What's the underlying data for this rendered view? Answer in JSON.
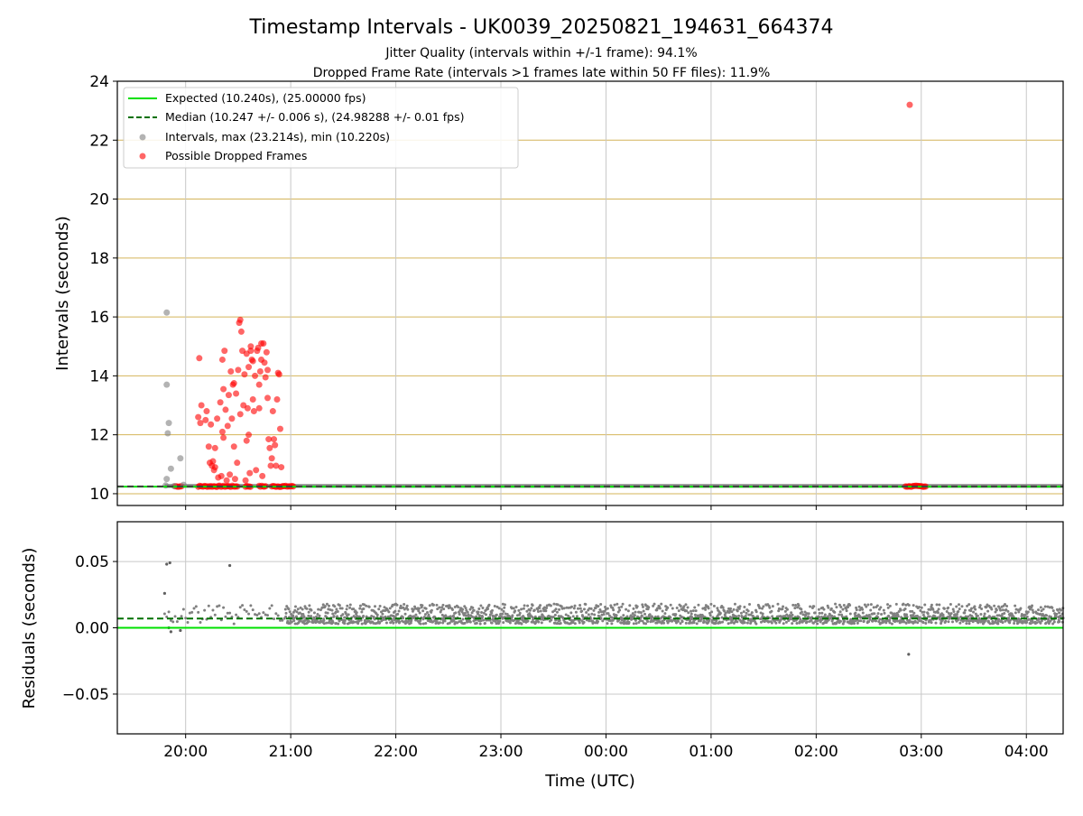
{
  "header": {
    "title": "Timestamp Intervals - UK0039_20250821_194631_664374",
    "subtitle1": "Jitter Quality (intervals within +/-1 frame): 94.1%",
    "subtitle2": "Dropped Frame Rate (intervals >1 frames late within 50 FF files): 11.9%"
  },
  "colors": {
    "expected": "#00e000",
    "median": "#007000",
    "intervals": "#808080",
    "dropped": "#ff0000",
    "hgrid_top": "#d4b45a",
    "vgrid": "#c8c8c8"
  },
  "chart_data": [
    {
      "type": "scatter",
      "ylabel": "Intervals (seconds)",
      "ylim": [
        9.6,
        24
      ],
      "yticks": [
        10,
        12,
        14,
        16,
        18,
        20,
        22,
        24
      ],
      "xlim_hours": [
        19.35,
        28.35
      ],
      "xticks_hours": [
        20,
        21,
        22,
        23,
        24,
        25,
        26,
        27,
        28
      ],
      "expected": 10.24,
      "median": 10.247,
      "legend": {
        "location": "upper-left",
        "entries": [
          "Expected (10.240s), (25.00000 fps)",
          "Median (10.247 +/- 0.006 s), (24.98288 +/- 0.01 fps)",
          "Intervals, max (23.214s), min (10.220s)",
          "Possible Dropped Frames"
        ]
      },
      "series": [
        {
          "name": "Intervals, max (23.214s), min (10.220s)",
          "points": [
            [
              19.82,
              16.15
            ],
            [
              19.82,
              13.7
            ],
            [
              19.84,
              12.4
            ],
            [
              19.83,
              12.05
            ],
            [
              19.82,
              10.5
            ],
            [
              19.86,
              10.85
            ],
            [
              19.81,
              10.28
            ],
            [
              19.95,
              11.2
            ],
            [
              19.89,
              10.26
            ],
            [
              19.98,
              10.3
            ]
          ]
        },
        {
          "name": "Possible Dropped Frames",
          "points": [
            [
              20.13,
              14.6
            ],
            [
              20.15,
              13.0
            ],
            [
              20.12,
              12.6
            ],
            [
              20.14,
              12.4
            ],
            [
              20.2,
              12.8
            ],
            [
              20.22,
              11.6
            ],
            [
              20.26,
              11.1
            ],
            [
              20.25,
              10.95
            ],
            [
              20.28,
              11.55
            ],
            [
              20.3,
              12.55
            ],
            [
              20.33,
              13.1
            ],
            [
              20.35,
              14.55
            ],
            [
              20.37,
              14.85
            ],
            [
              20.38,
              12.85
            ],
            [
              20.35,
              12.1
            ],
            [
              20.36,
              11.9
            ],
            [
              20.4,
              12.3
            ],
            [
              20.41,
              13.35
            ],
            [
              20.43,
              14.15
            ],
            [
              20.45,
              13.7
            ],
            [
              20.44,
              12.55
            ],
            [
              20.46,
              11.6
            ],
            [
              20.48,
              13.4
            ],
            [
              20.5,
              14.2
            ],
            [
              20.51,
              15.8
            ],
            [
              20.52,
              15.9
            ],
            [
              20.53,
              15.5
            ],
            [
              20.54,
              14.85
            ],
            [
              20.52,
              12.7
            ],
            [
              20.49,
              11.05
            ],
            [
              20.55,
              13.0
            ],
            [
              20.56,
              14.05
            ],
            [
              20.58,
              11.8
            ],
            [
              20.59,
              12.9
            ],
            [
              20.6,
              14.3
            ],
            [
              20.62,
              14.85
            ],
            [
              20.63,
              14.55
            ],
            [
              20.64,
              13.2
            ],
            [
              20.65,
              12.8
            ],
            [
              20.66,
              14.0
            ],
            [
              20.68,
              14.85
            ],
            [
              20.69,
              14.95
            ],
            [
              20.7,
              13.7
            ],
            [
              20.71,
              14.15
            ],
            [
              20.72,
              15.1
            ],
            [
              20.74,
              15.1
            ],
            [
              20.75,
              14.45
            ],
            [
              20.76,
              13.95
            ],
            [
              20.77,
              14.8
            ],
            [
              20.78,
              13.25
            ],
            [
              20.79,
              11.85
            ],
            [
              20.8,
              11.55
            ],
            [
              20.82,
              11.2
            ],
            [
              20.83,
              12.8
            ],
            [
              20.84,
              11.85
            ],
            [
              20.85,
              11.65
            ],
            [
              20.86,
              10.95
            ],
            [
              20.87,
              13.2
            ],
            [
              20.88,
              14.1
            ],
            [
              20.89,
              14.05
            ],
            [
              20.9,
              12.2
            ],
            [
              20.91,
              10.9
            ],
            [
              20.23,
              11.05
            ],
            [
              20.27,
              10.8
            ],
            [
              20.31,
              10.55
            ],
            [
              20.34,
              10.6
            ],
            [
              20.39,
              10.45
            ],
            [
              20.42,
              10.65
            ],
            [
              20.47,
              10.5
            ],
            [
              20.57,
              10.45
            ],
            [
              20.61,
              10.7
            ],
            [
              20.67,
              10.8
            ],
            [
              20.73,
              10.6
            ],
            [
              20.81,
              10.95
            ],
            [
              20.28,
              10.9
            ],
            [
              20.19,
              12.5
            ],
            [
              20.24,
              12.35
            ],
            [
              20.6,
              12.0
            ],
            [
              20.7,
              12.9
            ],
            [
              20.78,
              14.2
            ],
            [
              20.46,
              13.75
            ],
            [
              20.36,
              13.55
            ],
            [
              20.64,
              14.5
            ],
            [
              20.72,
              14.55
            ],
            [
              20.58,
              14.75
            ],
            [
              20.62,
              15.0
            ],
            [
              26.89,
              23.2
            ]
          ]
        }
      ],
      "dropped_band_at_expected": [
        [
          19.9,
          19.97
        ],
        [
          20.12,
          20.5
        ],
        [
          20.57,
          20.62
        ],
        [
          20.7,
          20.76
        ],
        [
          20.82,
          21.03
        ],
        [
          26.85,
          27.05
        ]
      ],
      "scatter_band_at_expected": [
        [
          19.8,
          28.35
        ]
      ]
    },
    {
      "type": "scatter",
      "ylabel": "Residuals (seconds)",
      "xlabel": "Time (UTC)",
      "ylim": [
        -0.08,
        0.08
      ],
      "yticks": [
        -0.05,
        0.0,
        0.05
      ],
      "ytick_labels": [
        "−0.05",
        "0.00",
        "0.05"
      ],
      "xticks_hours": [
        20,
        21,
        22,
        23,
        24,
        25,
        26,
        27,
        28
      ],
      "xtick_labels": [
        "20:00",
        "21:00",
        "22:00",
        "23:00",
        "00:00",
        "01:00",
        "02:00",
        "03:00",
        "04:00"
      ],
      "expected": 0.0,
      "median": 0.007,
      "series": [
        {
          "name": "Residuals",
          "outliers": [
            [
              19.82,
              0.048
            ],
            [
              19.85,
              0.049
            ],
            [
              19.8,
              0.026
            ],
            [
              20.42,
              0.047
            ],
            [
              26.88,
              -0.02
            ],
            [
              19.84,
              0.0
            ],
            [
              19.86,
              -0.003
            ],
            [
              19.95,
              -0.002
            ]
          ]
        }
      ],
      "residual_band_dense": {
        "from": 20.95,
        "to": 28.35,
        "low": 0.003,
        "high": 0.018
      },
      "residual_band_sparse": {
        "from": 19.8,
        "to": 20.95,
        "low": 0.003,
        "high": 0.017
      }
    }
  ]
}
